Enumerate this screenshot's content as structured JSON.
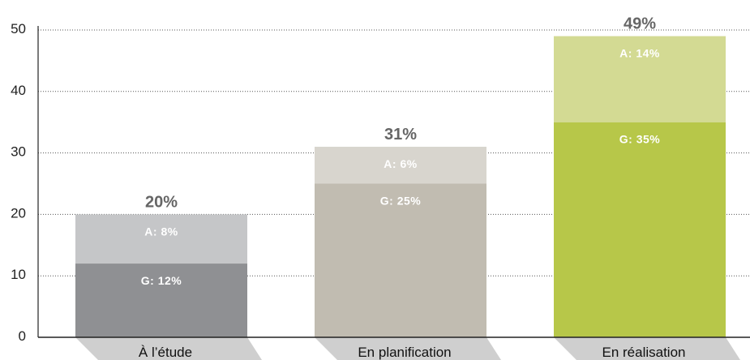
{
  "chart_data": {
    "type": "bar",
    "stacked": true,
    "categories": [
      "À l’étude",
      "En planification",
      "En réalisation"
    ],
    "series": [
      {
        "key": "G",
        "values": [
          12,
          25,
          35
        ],
        "labels": [
          "G: 12%",
          "G: 25%",
          "G: 35%"
        ]
      },
      {
        "key": "A",
        "values": [
          8,
          6,
          14
        ],
        "labels": [
          "A: 8%",
          "A: 6%",
          "A: 14%"
        ]
      }
    ],
    "totals": [
      20,
      31,
      49
    ],
    "total_labels": [
      "20%",
      "31%",
      "49%"
    ],
    "colors": {
      "G": [
        "#8f9093",
        "#c1bcb1",
        "#b7c749"
      ],
      "A": [
        "#c5c6c8",
        "#d8d5ce",
        "#d3da93"
      ]
    },
    "yticks": [
      "0",
      "10",
      "20",
      "30",
      "40",
      "50"
    ],
    "ylim": [
      0,
      50
    ],
    "grid": true,
    "grid_style": "dotted",
    "category_tabs": true
  }
}
